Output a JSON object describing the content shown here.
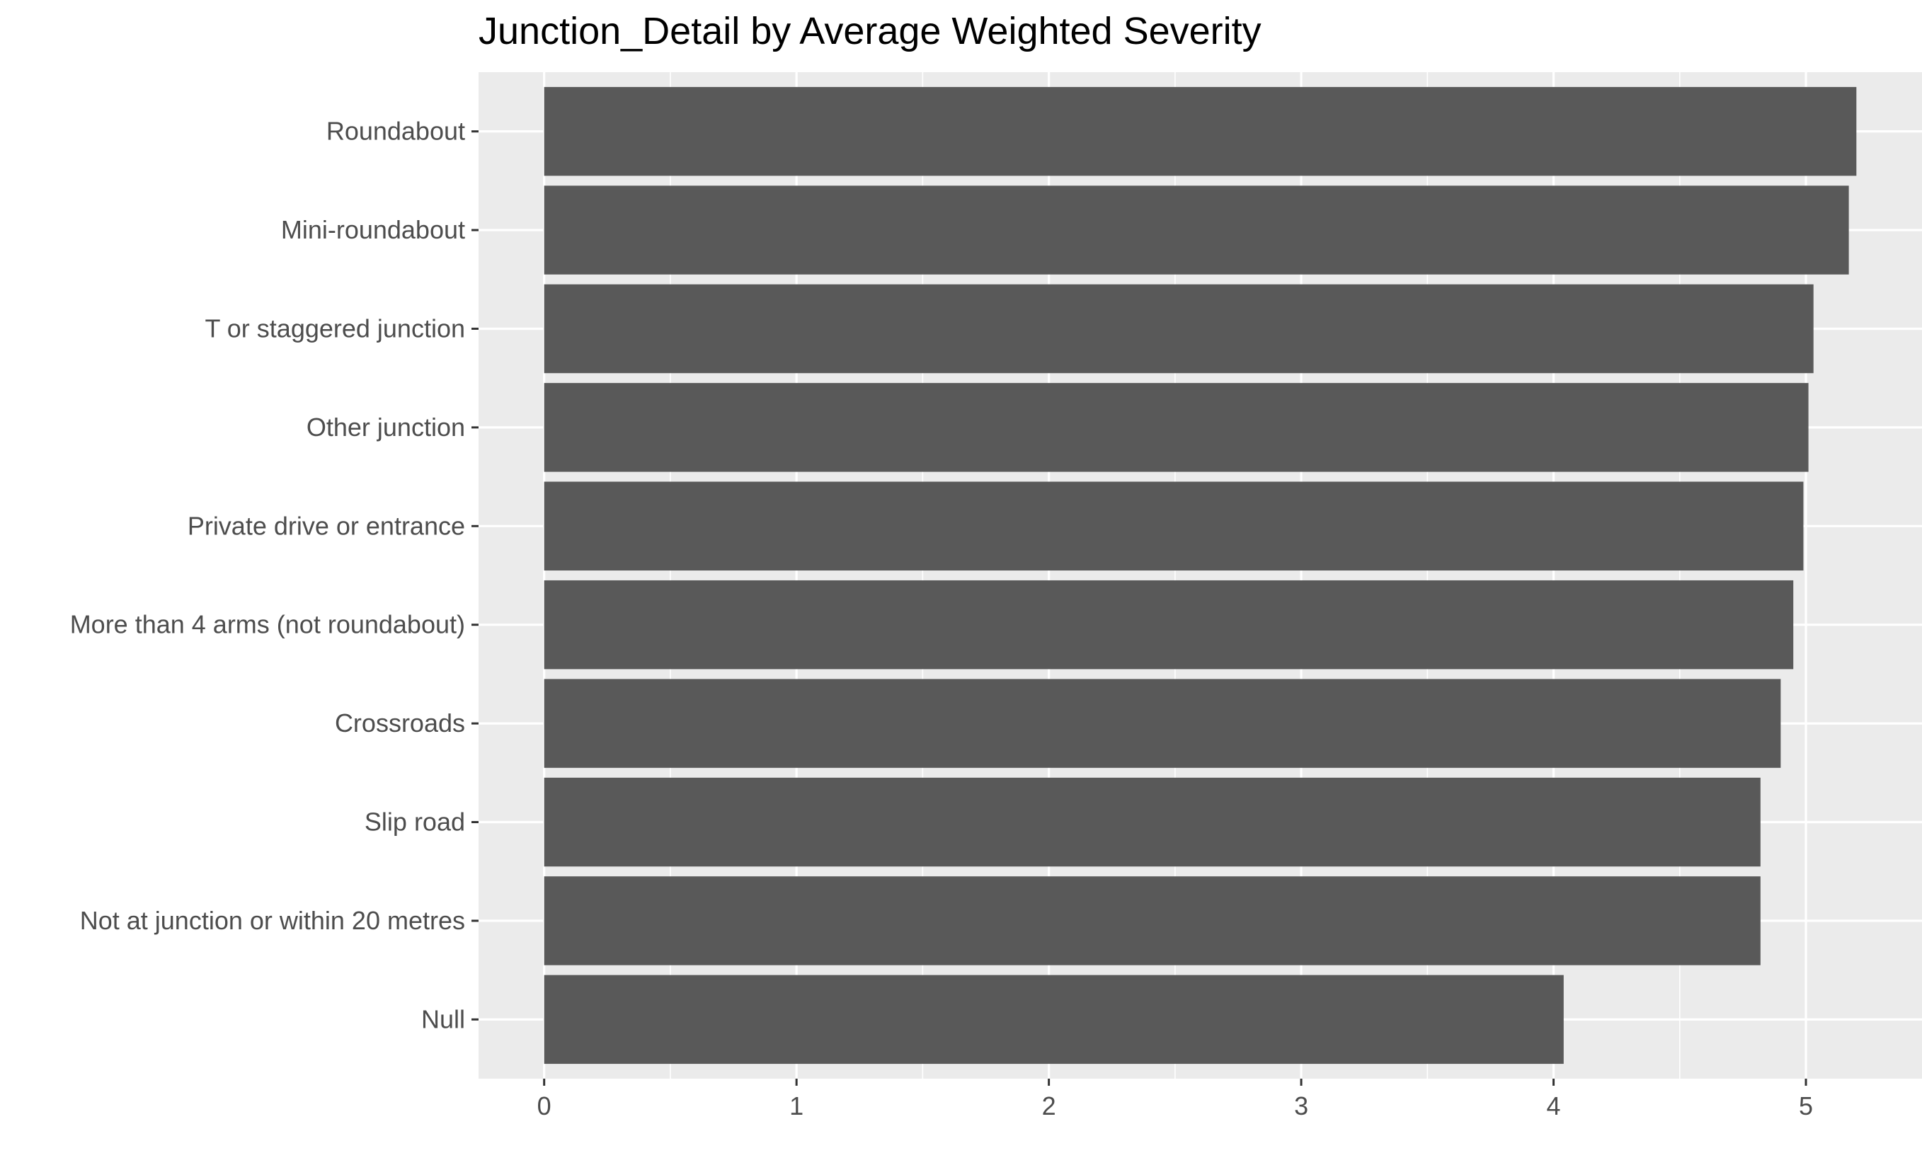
{
  "chart_data": {
    "type": "bar",
    "orientation": "horizontal",
    "title": "Junction_Detail by Average Weighted Severity",
    "xlabel": "",
    "ylabel": "",
    "categories": [
      "Roundabout",
      "Mini-roundabout",
      "T or staggered junction",
      "Other junction",
      "Private drive or entrance",
      "More than 4 arms (not roundabout)",
      "Crossroads",
      "Slip road",
      "Not at junction or within 20 metres",
      "Null"
    ],
    "values": [
      5.2,
      5.17,
      5.03,
      5.01,
      4.99,
      4.95,
      4.9,
      4.82,
      4.82,
      4.04
    ],
    "xlim": [
      -0.26,
      5.46
    ],
    "xticks": [
      0,
      1,
      2,
      3,
      4,
      5
    ],
    "xtick_labels": [
      "0",
      "1",
      "2",
      "3",
      "4",
      "5"
    ],
    "grid": true,
    "colors": {
      "panel": "#ebebeb",
      "bar": "#595959",
      "grid": "#ffffff",
      "tick": "#333333",
      "label": "#4d4d4d",
      "title": "#000000"
    }
  }
}
